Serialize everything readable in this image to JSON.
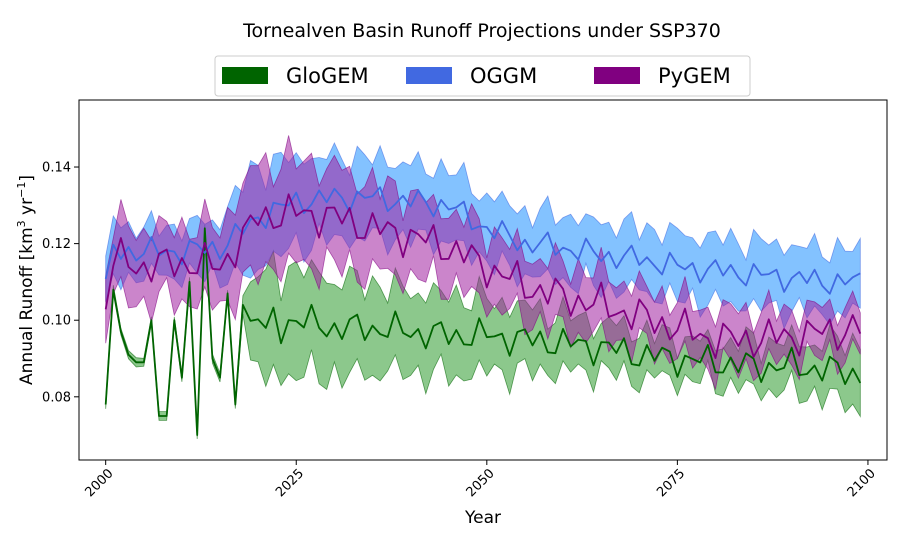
{
  "chart_data": {
    "type": "area",
    "title": "Tornealven Basin Runoff Projections under SSP370",
    "xlabel": "Year",
    "ylabel_main": "Annual Runoff [km",
    "ylabel_sup1": "3",
    "ylabel_mid": " yr",
    "ylabel_sup2": "−1",
    "ylabel_end": "]",
    "xlim": [
      1996.5,
      2102.5
    ],
    "ylim": [
      0.0635,
      0.1575
    ],
    "xticks": [
      2000,
      2025,
      2050,
      2075,
      2100
    ],
    "xtick_labels": [
      "2000",
      "2025",
      "2050",
      "2075",
      "2100"
    ],
    "yticks": [
      0.08,
      0.1,
      0.12,
      0.14
    ],
    "ytick_labels": [
      "0.08",
      "0.10",
      "0.12",
      "0.14"
    ],
    "legend_placement": "top-center",
    "grid": false,
    "series": [
      {
        "name": "GloGEM",
        "line_color": "#006400",
        "fill_color": "#2e9a2e",
        "knots_x": [
          2000,
          2001,
          2002,
          2003,
          2004,
          2005,
          2006,
          2007,
          2008,
          2009,
          2010,
          2011,
          2012,
          2013,
          2014,
          2015,
          2016,
          2017,
          2018,
          2019,
          2020,
          2021,
          2022,
          2023,
          2024,
          2025,
          2030,
          2035,
          2040,
          2045,
          2050,
          2055,
          2060,
          2065,
          2070,
          2075,
          2080,
          2085,
          2090,
          2095,
          2099
        ],
        "knots_mean": [
          0.078,
          0.108,
          0.097,
          0.091,
          0.089,
          0.089,
          0.1,
          0.075,
          0.075,
          0.1,
          0.085,
          0.11,
          0.07,
          0.124,
          0.09,
          0.085,
          0.107,
          0.078,
          0.104,
          0.098,
          0.102,
          0.096,
          0.1,
          0.098,
          0.1,
          0.1,
          0.098,
          0.098,
          0.097,
          0.096,
          0.096,
          0.095,
          0.094,
          0.093,
          0.091,
          0.09,
          0.089,
          0.088,
          0.088,
          0.087,
          0.086
        ],
        "knots_spread": [
          0.001,
          0.001,
          0.001,
          0.001,
          0.001,
          0.001,
          0.001,
          0.001,
          0.001,
          0.001,
          0.001,
          0.001,
          0.001,
          0.001,
          0.001,
          0.001,
          0.001,
          0.001,
          0.002,
          0.01,
          0.012,
          0.013,
          0.013,
          0.013,
          0.013,
          0.013,
          0.012,
          0.011,
          0.01,
          0.01,
          0.009,
          0.008,
          0.007,
          0.006,
          0.006,
          0.005,
          0.005,
          0.006,
          0.006,
          0.007,
          0.008
        ],
        "amp_x": [
          2000,
          2018,
          2019,
          2099
        ],
        "amp_y": [
          0.0,
          0.0,
          0.005,
          0.005
        ],
        "phase": 1.3
      },
      {
        "name": "OGGM",
        "line_color": "#4169e1",
        "fill_color": "#1e90ff",
        "knots_x": [
          2000,
          2001,
          2005,
          2010,
          2015,
          2019,
          2020,
          2025,
          2030,
          2035,
          2040,
          2045,
          2050,
          2055,
          2060,
          2065,
          2070,
          2075,
          2080,
          2085,
          2090,
          2095,
          2099
        ],
        "knots_mean": [
          0.108,
          0.118,
          0.118,
          0.118,
          0.119,
          0.125,
          0.127,
          0.131,
          0.132,
          0.132,
          0.131,
          0.13,
          0.124,
          0.12,
          0.119,
          0.117,
          0.116,
          0.114,
          0.113,
          0.112,
          0.111,
          0.11,
          0.11
        ],
        "knots_spread": [
          0.007,
          0.007,
          0.006,
          0.006,
          0.007,
          0.013,
          0.012,
          0.011,
          0.01,
          0.01,
          0.009,
          0.009,
          0.008,
          0.008,
          0.008,
          0.008,
          0.008,
          0.008,
          0.008,
          0.008,
          0.008,
          0.008,
          0.008
        ],
        "amp_x": [
          2000,
          2099
        ],
        "amp_y": [
          0.004,
          0.004
        ],
        "phase": 0.0
      },
      {
        "name": "PyGEM",
        "line_color": "#800080",
        "fill_color": "#a020a0",
        "knots_x": [
          2000,
          2001,
          2005,
          2010,
          2015,
          2019,
          2020,
          2025,
          2030,
          2035,
          2040,
          2045,
          2050,
          2055,
          2060,
          2065,
          2070,
          2075,
          2080,
          2085,
          2090,
          2095,
          2099
        ],
        "knots_mean": [
          0.104,
          0.116,
          0.114,
          0.115,
          0.114,
          0.124,
          0.127,
          0.128,
          0.127,
          0.124,
          0.122,
          0.119,
          0.114,
          0.109,
          0.106,
          0.104,
          0.101,
          0.098,
          0.095,
          0.095,
          0.096,
          0.097,
          0.098
        ],
        "knots_spread": [
          0.008,
          0.009,
          0.009,
          0.009,
          0.01,
          0.013,
          0.013,
          0.013,
          0.012,
          0.011,
          0.01,
          0.009,
          0.009,
          0.008,
          0.008,
          0.008,
          0.007,
          0.007,
          0.007,
          0.007,
          0.006,
          0.006,
          0.006
        ],
        "amp_x": [
          2000,
          2099
        ],
        "amp_y": [
          0.006,
          0.006
        ],
        "phase": 2.4
      }
    ]
  }
}
